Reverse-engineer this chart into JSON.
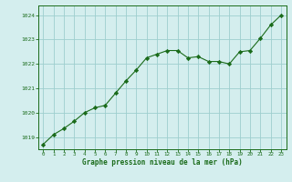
{
  "x": [
    0,
    1,
    2,
    3,
    4,
    5,
    6,
    7,
    8,
    9,
    10,
    11,
    12,
    13,
    14,
    15,
    16,
    17,
    18,
    19,
    20,
    21,
    22,
    23
  ],
  "y": [
    1018.7,
    1019.1,
    1019.35,
    1019.65,
    1020.0,
    1020.2,
    1020.3,
    1020.8,
    1021.3,
    1021.75,
    1022.25,
    1022.4,
    1022.55,
    1022.55,
    1022.25,
    1022.3,
    1022.1,
    1022.1,
    1022.0,
    1022.5,
    1022.55,
    1023.05,
    1023.6,
    1024.0
  ],
  "line_color": "#1a6b1a",
  "marker": "D",
  "marker_size": 2.2,
  "bg_color": "#d4eeee",
  "grid_color": "#9ecece",
  "xlabel": "Graphe pression niveau de la mer (hPa)",
  "xlabel_color": "#1a6b1a",
  "tick_color": "#1a6b1a",
  "ylim": [
    1018.5,
    1024.4
  ],
  "yticks": [
    1019,
    1020,
    1021,
    1022,
    1023,
    1024
  ],
  "xticks": [
    0,
    1,
    2,
    3,
    4,
    5,
    6,
    7,
    8,
    9,
    10,
    11,
    12,
    13,
    14,
    15,
    16,
    17,
    18,
    19,
    20,
    21,
    22,
    23
  ],
  "xlim": [
    -0.5,
    23.5
  ]
}
